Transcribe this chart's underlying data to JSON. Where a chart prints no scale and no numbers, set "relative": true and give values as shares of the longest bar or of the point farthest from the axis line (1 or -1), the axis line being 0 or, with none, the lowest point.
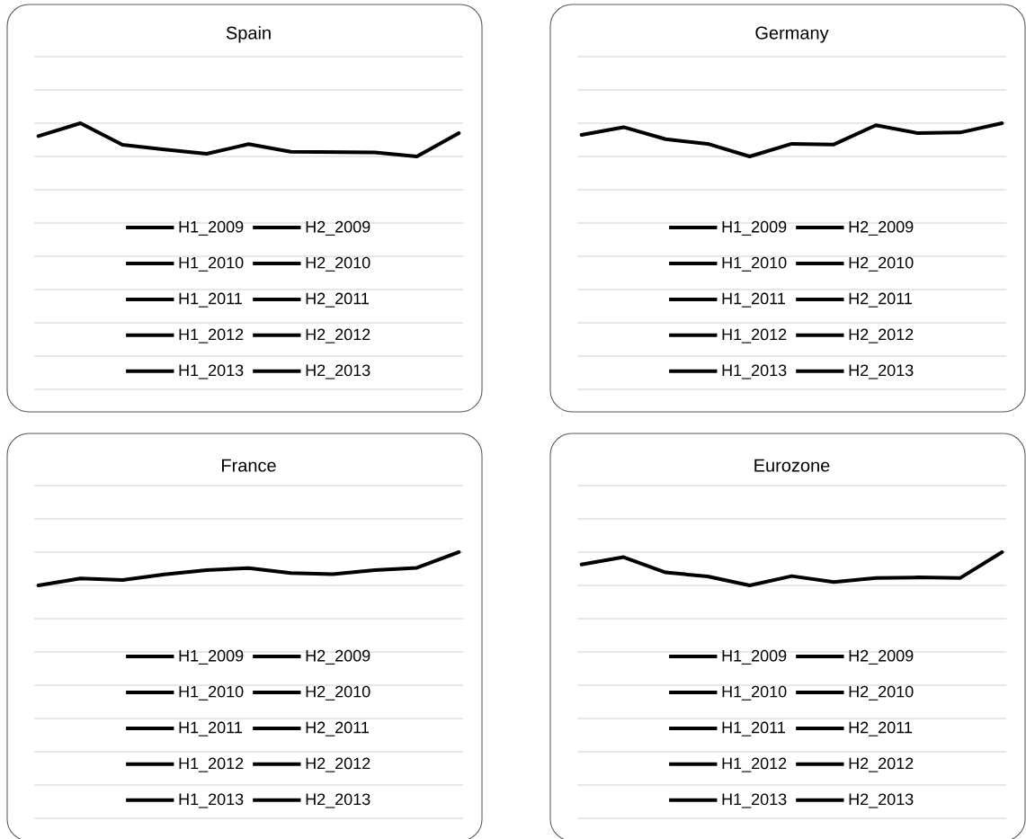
{
  "chart_data": [
    {
      "type": "line",
      "title": "Spain",
      "categories": [
        null,
        null,
        null,
        null,
        null,
        null,
        null,
        null,
        null,
        null,
        null
      ],
      "relative": true,
      "annotations": [
        "H1_2009",
        "H2_2009",
        "H1_2010",
        "H2_2010",
        "H1_2011",
        "H2_2011",
        "H1_2012",
        "H2_2012",
        "H1_2013",
        "H2_2013"
      ],
      "series": [
        {
          "color": "#000000",
          "values": [
            0.61,
            1,
            0.35,
            0.21,
            0.08,
            0.37,
            0.14,
            0.13,
            0.12,
            0,
            0.7
          ]
        }
      ]
    },
    {
      "type": "line",
      "title": "Germany",
      "categories": [
        null,
        null,
        null,
        null,
        null,
        null,
        null,
        null,
        null,
        null,
        null
      ],
      "relative": true,
      "annotations": [
        "H1_2009",
        "H2_2009",
        "H1_2010",
        "H2_2010",
        "H1_2011",
        "H2_2011",
        "H1_2012",
        "H2_2012",
        "H1_2013",
        "H2_2013"
      ],
      "series": [
        {
          "color": "#000000",
          "values": [
            0.65,
            0.88,
            0.52,
            0.38,
            0,
            0.38,
            0.36,
            0.94,
            0.7,
            0.72,
            1
          ]
        }
      ]
    },
    {
      "type": "line",
      "title": "France",
      "categories": [
        null,
        null,
        null,
        null,
        null,
        null,
        null,
        null,
        null,
        null,
        null
      ],
      "relative": true,
      "annotations": [
        "H1_2009",
        "H2_2009",
        "H1_2010",
        "H2_2010",
        "H1_2011",
        "H2_2011",
        "H1_2012",
        "H2_2012",
        "H1_2013",
        "H2_2013"
      ],
      "series": [
        {
          "color": "#000000",
          "values": [
            0,
            0.21,
            0.16,
            0.33,
            0.46,
            0.52,
            0.37,
            0.34,
            0.46,
            0.53,
            1
          ]
        }
      ]
    },
    {
      "type": "line",
      "title": "Eurozone",
      "categories": [
        null,
        null,
        null,
        null,
        null,
        null,
        null,
        null,
        null,
        null,
        null
      ],
      "relative": true,
      "annotations": [
        "H1_2009",
        "H2_2009",
        "H1_2010",
        "H2_2010",
        "H1_2011",
        "H2_2011",
        "H1_2012",
        "H2_2012",
        "H1_2013",
        "H2_2013"
      ],
      "series": [
        {
          "color": "#000000",
          "values": [
            0.63,
            0.85,
            0.39,
            0.27,
            0,
            0.28,
            0.1,
            0.22,
            0.24,
            0.22,
            1
          ]
        }
      ]
    }
  ]
}
